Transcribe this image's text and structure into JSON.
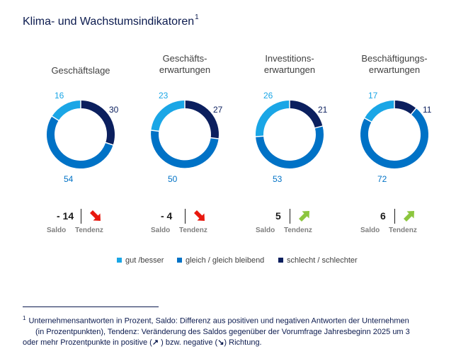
{
  "title": "Klima- und Wachstumsindikatoren",
  "title_footnote_marker": "1",
  "colors": {
    "gut": "#1aa6e6",
    "gleich": "#0072c6",
    "schlecht": "#0b1f5e",
    "arrow_down": "#e8180e",
    "arrow_up": "#8cc63e"
  },
  "legend": [
    {
      "label": "gut /besser",
      "color": "#1aa6e6"
    },
    {
      "label": "gleich / gleich bleibend",
      "color": "#0072c6"
    },
    {
      "label": "schlecht / schlechter",
      "color": "#0b1f5e"
    }
  ],
  "chart_data": [
    {
      "type": "pie",
      "title_lines": [
        "Geschäftslage"
      ],
      "categories": [
        "gut /besser",
        "gleich / gleich bleibend",
        "schlecht / schlechter"
      ],
      "values": [
        16,
        54,
        30
      ],
      "saldo": "- 14",
      "saldo_label": "Saldo",
      "tendenz_label": "Tendenz",
      "tendenz": "down"
    },
    {
      "type": "pie",
      "title_lines": [
        "Geschäfts-",
        "erwartungen"
      ],
      "categories": [
        "gut /besser",
        "gleich / gleich bleibend",
        "schlecht / schlechter"
      ],
      "values": [
        23,
        50,
        27
      ],
      "saldo": "- 4",
      "saldo_label": "Saldo",
      "tendenz_label": "Tendenz",
      "tendenz": "down"
    },
    {
      "type": "pie",
      "title_lines": [
        "Investitions-",
        "erwartungen"
      ],
      "categories": [
        "gut /besser",
        "gleich / gleich bleibend",
        "schlecht / schlechter"
      ],
      "values": [
        26,
        53,
        21
      ],
      "saldo": "5",
      "saldo_label": "Saldo",
      "tendenz_label": "Tendenz",
      "tendenz": "up"
    },
    {
      "type": "pie",
      "title_lines": [
        "Beschäftigungs-",
        "erwartungen"
      ],
      "categories": [
        "gut /besser",
        "gleich / gleich bleibend",
        "schlecht / schlechter"
      ],
      "values": [
        17,
        72,
        11
      ],
      "saldo": "6",
      "saldo_label": "Saldo",
      "tendenz_label": "Tendenz",
      "tendenz": "up"
    }
  ],
  "footnote": {
    "marker": "1",
    "line1": "Unternehmensantworten in Prozent, Saldo: Differenz aus positiven und negativen Antworten der Unternehmen",
    "line2": "(in Prozentpunkten), Tendenz: Veränderung des Saldos gegenüber der Vorumfrage Jahresbeginn 2025 um 3",
    "line3_a": "oder mehr Prozentpunkte in positive (",
    "arrow_up_glyph": "↗",
    "line3_b": " ) bzw. negative (",
    "arrow_down_glyph": "↘",
    "line3_c": ") Richtung."
  }
}
